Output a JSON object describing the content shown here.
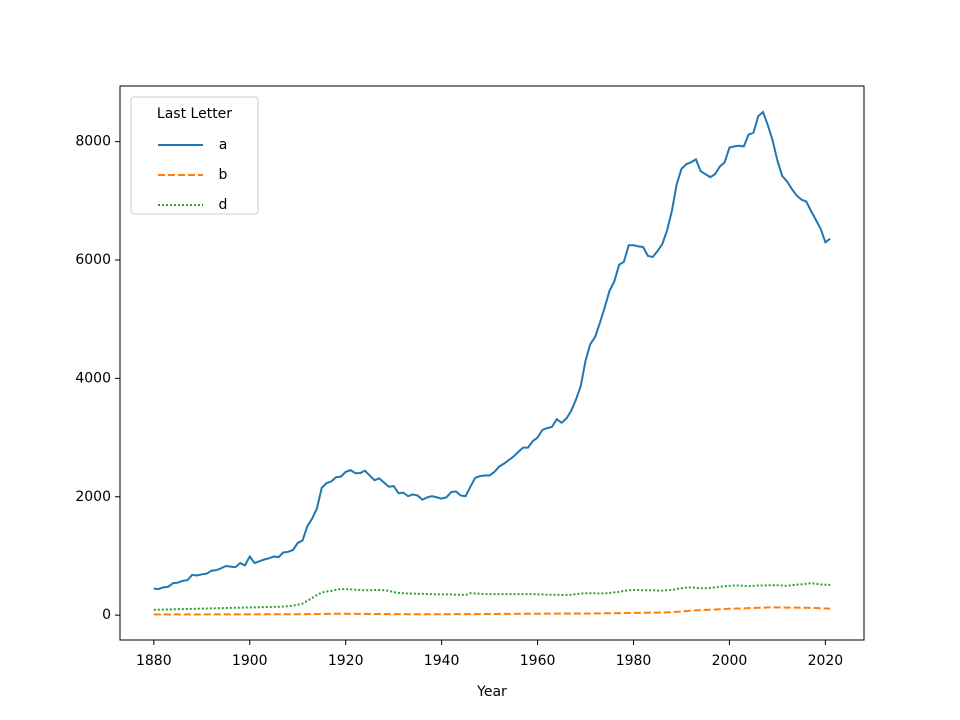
{
  "chart_data": {
    "type": "line",
    "x_label": "Year",
    "legend_title": "Last Letter",
    "legend": "upper left",
    "x": [
      1880,
      1881,
      1882,
      1883,
      1884,
      1885,
      1886,
      1887,
      1888,
      1889,
      1890,
      1891,
      1892,
      1893,
      1894,
      1895,
      1896,
      1897,
      1898,
      1899,
      1900,
      1901,
      1902,
      1903,
      1904,
      1905,
      1906,
      1907,
      1908,
      1909,
      1910,
      1911,
      1912,
      1913,
      1914,
      1915,
      1916,
      1917,
      1918,
      1919,
      1920,
      1921,
      1922,
      1923,
      1924,
      1925,
      1926,
      1927,
      1928,
      1929,
      1930,
      1931,
      1932,
      1933,
      1934,
      1935,
      1936,
      1937,
      1938,
      1939,
      1940,
      1941,
      1942,
      1943,
      1944,
      1945,
      1946,
      1947,
      1948,
      1949,
      1950,
      1951,
      1952,
      1953,
      1954,
      1955,
      1956,
      1957,
      1958,
      1959,
      1960,
      1961,
      1962,
      1963,
      1964,
      1965,
      1966,
      1967,
      1968,
      1969,
      1970,
      1971,
      1972,
      1973,
      1974,
      1975,
      1976,
      1977,
      1978,
      1979,
      1980,
      1981,
      1982,
      1983,
      1984,
      1985,
      1986,
      1987,
      1988,
      1989,
      1990,
      1991,
      1992,
      1993,
      1994,
      1995,
      1996,
      1997,
      1998,
      1999,
      2000,
      2001,
      2002,
      2003,
      2004,
      2005,
      2006,
      2007,
      2008,
      2009,
      2010,
      2011,
      2012,
      2013,
      2014,
      2015,
      2016,
      2017,
      2018,
      2019,
      2020,
      2021
    ],
    "series": [
      {
        "name": "a",
        "color": "#1f77b4",
        "dash": "solid",
        "values": [
          450,
          440,
          470,
          480,
          540,
          550,
          580,
          590,
          680,
          670,
          690,
          700,
          750,
          760,
          790,
          830,
          820,
          810,
          880,
          840,
          990,
          880,
          910,
          940,
          960,
          990,
          980,
          1060,
          1070,
          1100,
          1220,
          1260,
          1500,
          1630,
          1800,
          2150,
          2230,
          2260,
          2330,
          2340,
          2420,
          2450,
          2400,
          2400,
          2440,
          2360,
          2280,
          2310,
          2240,
          2170,
          2180,
          2060,
          2070,
          2010,
          2040,
          2020,
          1950,
          1990,
          2010,
          1990,
          1970,
          1990,
          2080,
          2090,
          2020,
          2010,
          2170,
          2320,
          2350,
          2360,
          2360,
          2420,
          2510,
          2560,
          2620,
          2680,
          2760,
          2830,
          2830,
          2940,
          3000,
          3130,
          3160,
          3180,
          3310,
          3250,
          3320,
          3450,
          3640,
          3870,
          4300,
          4580,
          4700,
          4940,
          5200,
          5480,
          5640,
          5920,
          5970,
          6250,
          6250,
          6230,
          6220,
          6070,
          6050,
          6150,
          6270,
          6500,
          6830,
          7280,
          7540,
          7620,
          7650,
          7700,
          7500,
          7450,
          7400,
          7450,
          7580,
          7650,
          7900,
          7920,
          7930,
          7920,
          8120,
          8150,
          8430,
          8500,
          8280,
          8020,
          7680,
          7420,
          7330,
          7200,
          7090,
          7020,
          6990,
          6830,
          6680,
          6530,
          6300,
          6360
        ]
      },
      {
        "name": "b",
        "color": "#ff7f0e",
        "dash": "dashed",
        "values": [
          12,
          11,
          12,
          11,
          12,
          12,
          11,
          12,
          12,
          11,
          12,
          12,
          12,
          13,
          12,
          13,
          12,
          13,
          13,
          13,
          14,
          13,
          14,
          14,
          14,
          15,
          14,
          15,
          15,
          16,
          16,
          17,
          18,
          19,
          20,
          21,
          22,
          22,
          23,
          23,
          23,
          22,
          22,
          21,
          21,
          20,
          20,
          19,
          19,
          18,
          18,
          17,
          17,
          16,
          16,
          16,
          15,
          15,
          15,
          15,
          16,
          16,
          16,
          17,
          17,
          17,
          18,
          18,
          19,
          19,
          20,
          20,
          21,
          21,
          22,
          22,
          23,
          23,
          24,
          24,
          24,
          25,
          25,
          25,
          25,
          25,
          26,
          26,
          27,
          27,
          28,
          28,
          29,
          30,
          31,
          32,
          33,
          34,
          35,
          36,
          38,
          39,
          40,
          41,
          42,
          43,
          44,
          46,
          50,
          56,
          62,
          68,
          74,
          80,
          85,
          88,
          92,
          96,
          100,
          104,
          108,
          111,
          113,
          115,
          118,
          121,
          124,
          127,
          130,
          132,
          131,
          129,
          128,
          127,
          126,
          125,
          124,
          123,
          120,
          117,
          113,
          110
        ]
      },
      {
        "name": "d",
        "color": "#2ca02c",
        "dash": "dotted",
        "values": [
          90,
          92,
          94,
          96,
          98,
          100,
          102,
          104,
          106,
          108,
          110,
          112,
          114,
          116,
          118,
          120,
          122,
          124,
          126,
          128,
          130,
          132,
          134,
          136,
          138,
          140,
          142,
          145,
          150,
          160,
          175,
          195,
          240,
          290,
          340,
          380,
          400,
          410,
          430,
          440,
          440,
          435,
          430,
          425,
          420,
          420,
          425,
          425,
          420,
          410,
          390,
          375,
          370,
          365,
          365,
          360,
          360,
          355,
          355,
          350,
          350,
          350,
          350,
          345,
          345,
          340,
          370,
          365,
          360,
          355,
          355,
          355,
          355,
          355,
          355,
          355,
          355,
          355,
          355,
          355,
          350,
          350,
          345,
          345,
          345,
          340,
          340,
          345,
          355,
          365,
          370,
          370,
          370,
          365,
          370,
          375,
          385,
          395,
          410,
          420,
          425,
          425,
          420,
          420,
          420,
          415,
          415,
          420,
          425,
          440,
          455,
          465,
          470,
          460,
          455,
          455,
          460,
          470,
          480,
          490,
          495,
          500,
          500,
          495,
          490,
          495,
          500,
          500,
          505,
          505,
          505,
          500,
          495,
          505,
          515,
          520,
          530,
          540,
          530,
          520,
          515,
          510
        ]
      }
    ],
    "xlim": [
      1872.95,
      2028.05
    ],
    "xticks": [
      1880,
      1900,
      1920,
      1940,
      1960,
      1980,
      2000,
      2020
    ],
    "ylim": [
      -420,
      8940
    ],
    "yticks": [
      0,
      2000,
      4000,
      6000,
      8000
    ],
    "grid": false
  }
}
